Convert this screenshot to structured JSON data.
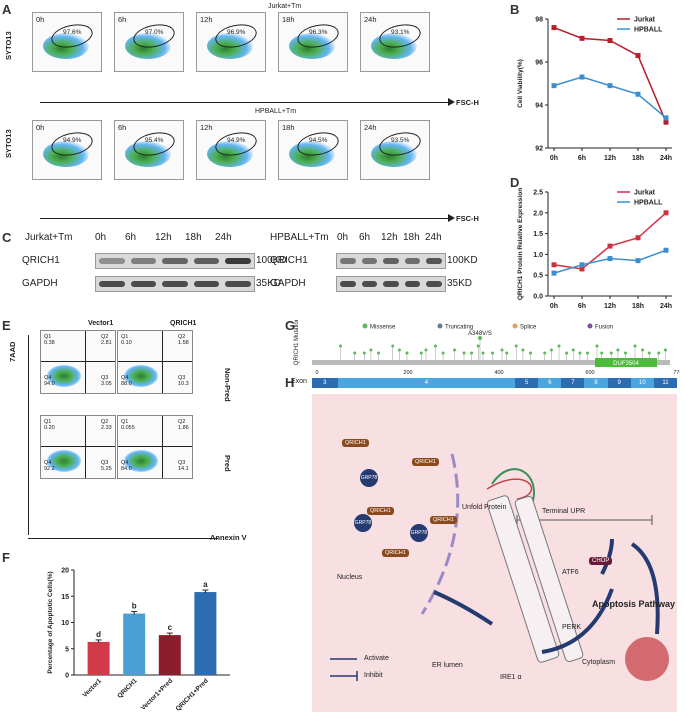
{
  "panels": {
    "A": "A",
    "B": "B",
    "C": "C",
    "D": "D",
    "E": "E",
    "F": "F",
    "G": "G",
    "H": "H"
  },
  "panelA": {
    "title_top": "Jurkat+Tm",
    "title_bottom": "HPBALL+Tm",
    "ylabel": "SYTO13",
    "xlabel": "FSC-H",
    "top": [
      {
        "time": "0h",
        "pct": "97.6%"
      },
      {
        "time": "6h",
        "pct": "97.0%"
      },
      {
        "time": "12h",
        "pct": "96.9%"
      },
      {
        "time": "18h",
        "pct": "96.3%"
      },
      {
        "time": "24h",
        "pct": "93.1%"
      }
    ],
    "bottom": [
      {
        "time": "0h",
        "pct": "94.9%"
      },
      {
        "time": "6h",
        "pct": "95.4%"
      },
      {
        "time": "12h",
        "pct": "94.9%"
      },
      {
        "time": "18h",
        "pct": "94.5%"
      },
      {
        "time": "24h",
        "pct": "93.5%"
      }
    ]
  },
  "panelC": {
    "jurkat_title": "Jurkat+Tm",
    "hpball_title": "HPBALL+Tm",
    "times": [
      "0h",
      "6h",
      "12h",
      "18h",
      "24h"
    ],
    "row1": "QRICH1",
    "row2": "GAPDH",
    "size1": "100KD",
    "size2": "35KD",
    "jurkat_q": [
      0.45,
      0.55,
      0.7,
      0.75,
      0.95
    ],
    "hpball_q": [
      0.6,
      0.62,
      0.72,
      0.65,
      0.8
    ]
  },
  "panelE": {
    "col1": "Vector1",
    "col2": "QRICH1",
    "row1": "Non-Pred",
    "row2": "Pred",
    "ylabel": "7AAD",
    "xlabel": "Annexin V",
    "plots": [
      {
        "q1_label": "Q1",
        "q1": "0.38",
        "q2_label": "Q2",
        "q2": "2.81",
        "q3_label": "Q3",
        "q3": "3.05",
        "q4_label": "Q4",
        "q4": "94.0"
      },
      {
        "q1_label": "Q1",
        "q1": "0.10",
        "q2_label": "Q2",
        "q2": "1.58",
        "q3_label": "Q3",
        "q3": "10.3",
        "q4_label": "Q4",
        "q4": "88.0"
      },
      {
        "q1_label": "Q1",
        "q1": "0.20",
        "q2_label": "Q2",
        "q2": "2.33",
        "q3_label": "Q3",
        "q3": "5.25",
        "q4_label": "Q4",
        "q4": "92.2"
      },
      {
        "q1_label": "Q1",
        "q1": "0.055",
        "q2_label": "Q2",
        "q2": "1.86",
        "q3_label": "Q3",
        "q3": "14.1",
        "q4_label": "Q4",
        "q4": "84.0"
      }
    ]
  },
  "panelG": {
    "ylabel": "QRICH1 Mutations",
    "legend": [
      "Missense",
      "Truncating",
      "Splice",
      "Fusion"
    ],
    "legend_colors": [
      "#5cb85c",
      "#607d8b",
      "#e0a15a",
      "#7a4fa3"
    ],
    "highlight": "A348V/S",
    "domain": "DUF3504",
    "aa_ticks": [
      "0",
      "200",
      "400",
      "600",
      "776aa"
    ],
    "exon_label": "Exon",
    "exons": [
      "3",
      "4",
      "5",
      "6",
      "7",
      "8",
      "9",
      "10",
      "11"
    ]
  },
  "panelH": {
    "terminal_upr": "Terminal UPR",
    "unfold_protein": "Unfold Protein",
    "nucleus": "Nucleus",
    "er_lumen": "ER lumen",
    "cytoplasm": "Cytoplasm",
    "atf6": "ATF6",
    "perk": "PERK",
    "ire1": "IRE1 α",
    "chop": "CHOP",
    "apoptosis": "Apoptosis Pathway",
    "qrich1": "QRICH1",
    "grp78": "GRP78",
    "activate": "Activate",
    "inhibit": "Inhibit"
  },
  "chart_data": [
    {
      "type": "line",
      "id": "B",
      "ylabel": "Cell Viability(%)",
      "categories": [
        "0h",
        "6h",
        "12h",
        "18h",
        "24h"
      ],
      "ylim": [
        92,
        98
      ],
      "yticks": [
        "92",
        "94",
        "96",
        "98"
      ],
      "series": [
        {
          "name": "Jurkat",
          "color": "#b71c2c",
          "values": [
            97.6,
            97.1,
            97.0,
            96.3,
            93.2
          ]
        },
        {
          "name": "HPBALL",
          "color": "#3b8fcf",
          "values": [
            94.9,
            95.3,
            94.9,
            94.5,
            93.4
          ]
        }
      ]
    },
    {
      "type": "line",
      "id": "D",
      "ylabel": "QRICH1 Protein Relative Expression",
      "categories": [
        "0h",
        "6h",
        "12h",
        "18h",
        "24h"
      ],
      "ylim": [
        0,
        2.5
      ],
      "yticks": [
        "0.0",
        "0.5",
        "1.0",
        "1.5",
        "2.0",
        "2.5"
      ],
      "series": [
        {
          "name": "Jurkat",
          "color": "#d12f3f",
          "values": [
            0.75,
            0.65,
            1.2,
            1.4,
            2.0
          ]
        },
        {
          "name": "HPBALL",
          "color": "#3b8fcf",
          "values": [
            0.55,
            0.75,
            0.9,
            0.85,
            1.1
          ]
        }
      ]
    },
    {
      "type": "bar",
      "id": "F",
      "ylabel": "Percentage of Apoptotic Cells(%)",
      "categories": [
        "Vector1",
        "QRICH1",
        "Vector1+Pred",
        "QRICH1+Pred"
      ],
      "values": [
        6.3,
        11.7,
        7.6,
        15.8
      ],
      "letters": [
        "d",
        "b",
        "c",
        "a"
      ],
      "colors": [
        "#d13a48",
        "#4a9fd4",
        "#8b1d2c",
        "#2b6cb3"
      ],
      "ylim": [
        0,
        20
      ],
      "yticks": [
        "0",
        "5",
        "10",
        "15",
        "20"
      ]
    }
  ]
}
